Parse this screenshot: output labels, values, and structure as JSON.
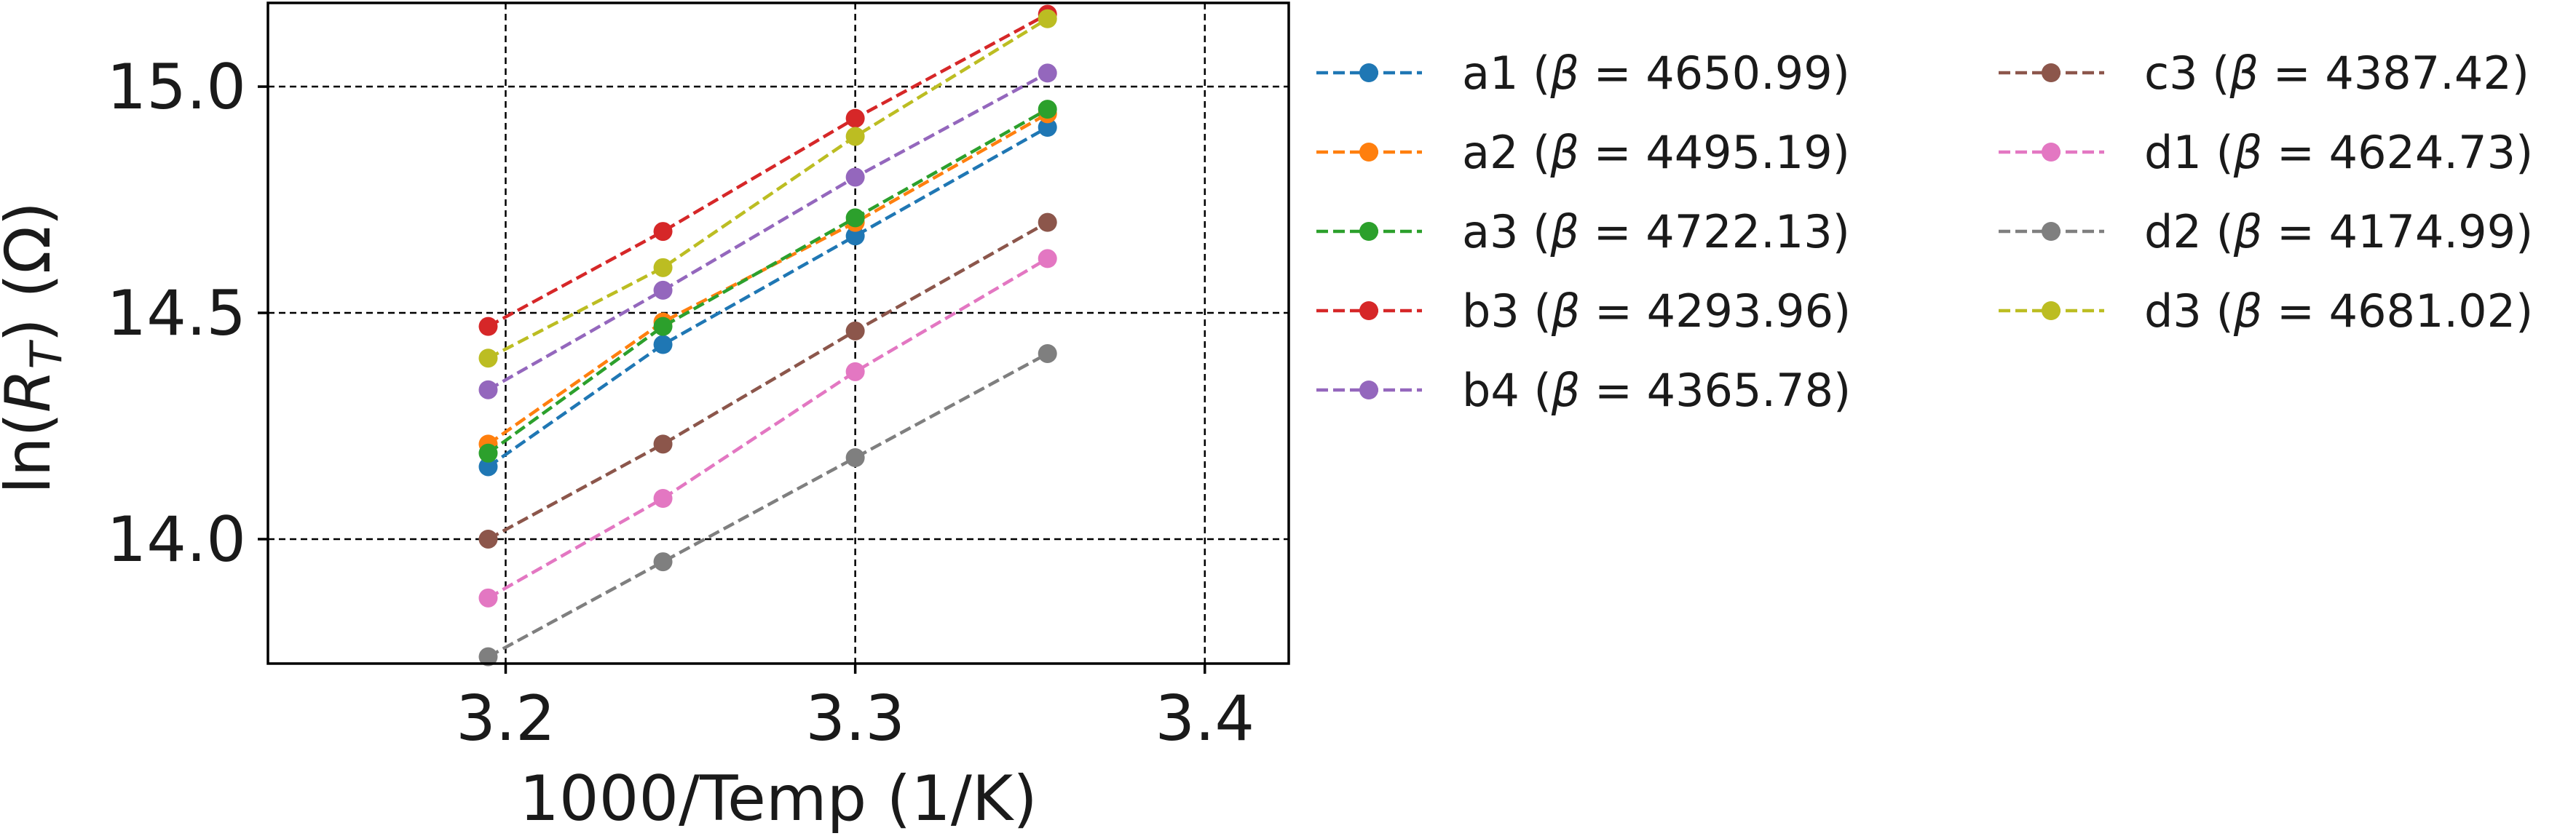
{
  "chart_data": {
    "type": "line",
    "title": "",
    "xlabel": "1000/Temp (1/K)",
    "ylabel": "ln(R_T) (Ω)",
    "xlim": [
      3.132,
      3.424
    ],
    "ylim": [
      13.725,
      15.185
    ],
    "xticks": [
      3.2,
      3.3,
      3.4
    ],
    "yticks": [
      14.0,
      14.5,
      15.0
    ],
    "grid": true,
    "line_style": "dashed",
    "marker": "circle",
    "legend": "outside right, two columns",
    "x": [
      3.195,
      3.245,
      3.3,
      3.355
    ],
    "series": [
      {
        "name": "a1 (β = 4650.99)",
        "color": "#1f77b4",
        "values": [
          14.16,
          14.43,
          14.67,
          14.91
        ]
      },
      {
        "name": "a2 (β = 4495.19)",
        "color": "#ff7f0e",
        "values": [
          14.21,
          14.48,
          14.7,
          14.94
        ]
      },
      {
        "name": "a3 (β = 4722.13)",
        "color": "#2ca02c",
        "values": [
          14.19,
          14.47,
          14.71,
          14.95
        ]
      },
      {
        "name": "b3 (β = 4293.96)",
        "color": "#d62728",
        "values": [
          14.47,
          14.68,
          14.93,
          15.16
        ]
      },
      {
        "name": "b4 (β = 4365.78)",
        "color": "#9467bd",
        "values": [
          14.33,
          14.55,
          14.8,
          15.03
        ]
      },
      {
        "name": "c3 (β = 4387.42)",
        "color": "#8c564b",
        "values": [
          14.0,
          14.21,
          14.46,
          14.7
        ]
      },
      {
        "name": "d1 (β = 4624.73)",
        "color": "#e377c2",
        "values": [
          13.87,
          14.09,
          14.37,
          14.62
        ]
      },
      {
        "name": "d2 (β = 4174.99)",
        "color": "#7f7f7f",
        "values": [
          13.74,
          13.95,
          14.18,
          14.41
        ]
      },
      {
        "name": "d3 (β = 4681.02)",
        "color": "#bcbd22",
        "values": [
          14.4,
          14.6,
          14.89,
          15.15
        ]
      }
    ]
  }
}
